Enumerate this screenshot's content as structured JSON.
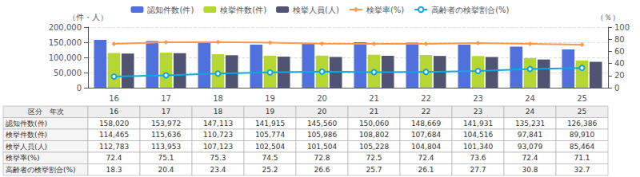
{
  "chart_data": {
    "type": "bar",
    "categories": [
      "16",
      "17",
      "18",
      "19",
      "20",
      "21",
      "22",
      "23",
      "24",
      "25"
    ],
    "series": [
      {
        "name": "認知件数(件)",
        "type": "bar",
        "values": [
          158020,
          153972,
          147113,
          141915,
          145560,
          150060,
          148669,
          141931,
          135231,
          126386
        ]
      },
      {
        "name": "検挙件数(件)",
        "type": "bar",
        "values": [
          114465,
          115636,
          110723,
          105774,
          105986,
          108802,
          107684,
          104516,
          97841,
          89910
        ]
      },
      {
        "name": "検挙人員(人)",
        "type": "bar",
        "values": [
          112783,
          113953,
          107123,
          102504,
          101504,
          105228,
          104804,
          101340,
          93079,
          85464
        ]
      },
      {
        "name": "検挙率(%)",
        "type": "line",
        "axis": "y2",
        "marker": "diamond",
        "values": [
          72.4,
          75.1,
          75.3,
          74.5,
          72.8,
          72.5,
          72.4,
          73.6,
          72.4,
          71.1
        ]
      },
      {
        "name": "高齢者の検挙割合(%)",
        "type": "line",
        "axis": "y2",
        "marker": "circle",
        "values": [
          18.3,
          20.4,
          23.4,
          25.2,
          26.6,
          25.7,
          26.1,
          27.7,
          30.8,
          32.7
        ]
      }
    ],
    "ylabel": "（件・人）",
    "y2label": "（％）",
    "ylim": [
      0,
      200000
    ],
    "yticks": [
      0,
      {
        "value": 50000,
        "label": "50,000"
      },
      {
        "value": 100000,
        "label": "100,000"
      },
      {
        "value": 150000,
        "label": "150,000"
      },
      {
        "value": 200000,
        "label": "200,000"
      }
    ],
    "y2lim": [
      0,
      100
    ],
    "y2ticks": [
      0,
      20,
      40,
      60,
      80,
      100
    ],
    "grid": true,
    "legend": "top",
    "table": {
      "header": "区分　年次",
      "rows": [
        {
          "label": "認知件数(件)",
          "cells": [
            "158,020",
            "153,972",
            "147,113",
            "141,915",
            "145,560",
            "150,060",
            "148,669",
            "141,931",
            "135,231",
            "126,386"
          ]
        },
        {
          "label": "検挙件数(件)",
          "cells": [
            "114,465",
            "115,636",
            "110,723",
            "105,774",
            "105,986",
            "108,802",
            "107,684",
            "104,516",
            "97,841",
            "89,910"
          ]
        },
        {
          "label": "検挙人員(人)",
          "cells": [
            "112,783",
            "113,953",
            "107,123",
            "102,504",
            "101,504",
            "105,228",
            "104,804",
            "101,340",
            "93,079",
            "85,464"
          ]
        },
        {
          "label": "検挙率(%)",
          "cells": [
            "72.4",
            "75.1",
            "75.3",
            "74.5",
            "72.8",
            "72.5",
            "72.4",
            "73.6",
            "72.4",
            "71.1"
          ]
        },
        {
          "label": "高齢者の検挙割合(%)",
          "cells": [
            "18.3",
            "20.4",
            "23.4",
            "25.2",
            "26.6",
            "25.7",
            "26.1",
            "27.7",
            "30.8",
            "32.7"
          ]
        }
      ]
    }
  }
}
